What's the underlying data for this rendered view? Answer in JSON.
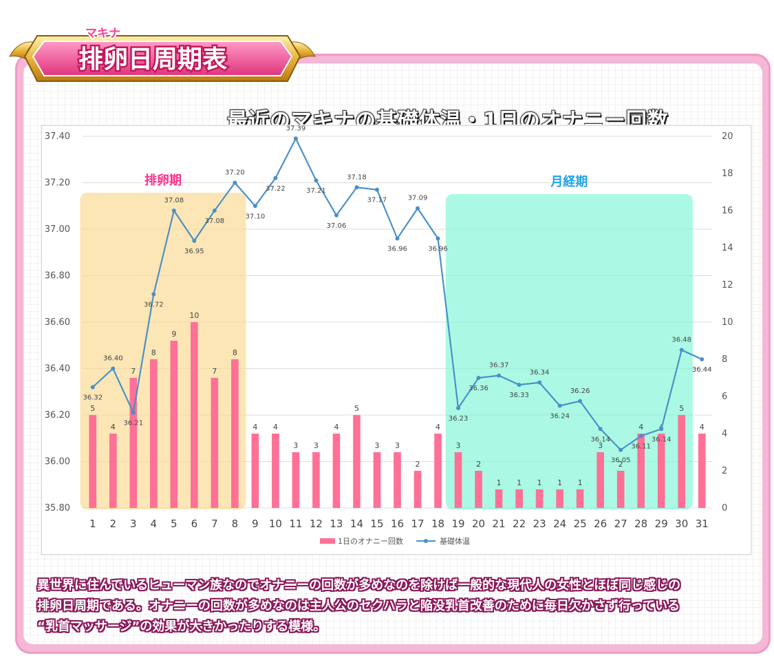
{
  "header": {
    "badge_ruby": "マキナ",
    "badge_title": "排卵日周期表"
  },
  "chart_title": "最近のマキナの基礎体温・1日のオナニー回数",
  "description": [
    "異世界に住んでいるヒューマン族なのでオナニーの回数が多めなのを除けば一般的な現代人の女性とほぼ同じ感じの",
    "排卵日周期である。オナニーの回数が多めなのは主人公のセクハラと陥没乳首改善のために毎日欠かさず行っている",
    "“乳首マッサージ”の効果が大きかったりする模様。"
  ],
  "chart_data": {
    "type": "bar+line",
    "title": "最近のマキナの基礎体温・1日のオナニー回数",
    "categories": [
      "1",
      "2",
      "3",
      "4",
      "5",
      "6",
      "7",
      "8",
      "9",
      "10",
      "11",
      "12",
      "13",
      "14",
      "15",
      "16",
      "17",
      "18",
      "19",
      "20",
      "21",
      "22",
      "23",
      "24",
      "25",
      "26",
      "27",
      "28",
      "29",
      "30",
      "31"
    ],
    "series": [
      {
        "name": "1日のオナニー回数",
        "kind": "bar",
        "axis": "right",
        "values": [
          5,
          4,
          7,
          8,
          9,
          10,
          7,
          8,
          4,
          4,
          3,
          3,
          4,
          5,
          3,
          3,
          2,
          4,
          3,
          2,
          1,
          1,
          1,
          1,
          1,
          3,
          2,
          4,
          4,
          5,
          4
        ],
        "color": "#ff7096"
      },
      {
        "name": "基礎体温",
        "kind": "line",
        "axis": "left",
        "values": [
          36.32,
          36.4,
          36.21,
          36.72,
          37.08,
          36.95,
          37.08,
          37.2,
          37.1,
          37.22,
          37.39,
          37.21,
          37.06,
          37.18,
          37.17,
          36.96,
          37.09,
          36.96,
          36.23,
          36.36,
          36.37,
          36.33,
          36.34,
          36.24,
          36.26,
          36.14,
          36.05,
          36.11,
          36.14,
          36.48,
          36.44
        ],
        "color": "#4a90c8"
      }
    ],
    "y_left": {
      "min": 35.8,
      "max": 37.4,
      "ticks": [
        "35.80",
        "36.00",
        "36.20",
        "36.40",
        "36.60",
        "36.80",
        "37.00",
        "37.20",
        "37.40"
      ]
    },
    "y_right": {
      "min": 0,
      "max": 20,
      "ticks": [
        "0",
        "2",
        "4",
        "6",
        "8",
        "10",
        "12",
        "14",
        "16",
        "18",
        "20"
      ]
    },
    "grid": true,
    "legend_position": "bottom",
    "annotations": [
      {
        "label": "排卵期",
        "from_day": 1,
        "to_day": 8,
        "color": "#fbd98f",
        "label_color": "#ff2e8a"
      },
      {
        "label": "月経期",
        "from_day": 19,
        "to_day": 30,
        "color": "#7ef6d6",
        "label_color": "#1da2e8"
      }
    ]
  }
}
